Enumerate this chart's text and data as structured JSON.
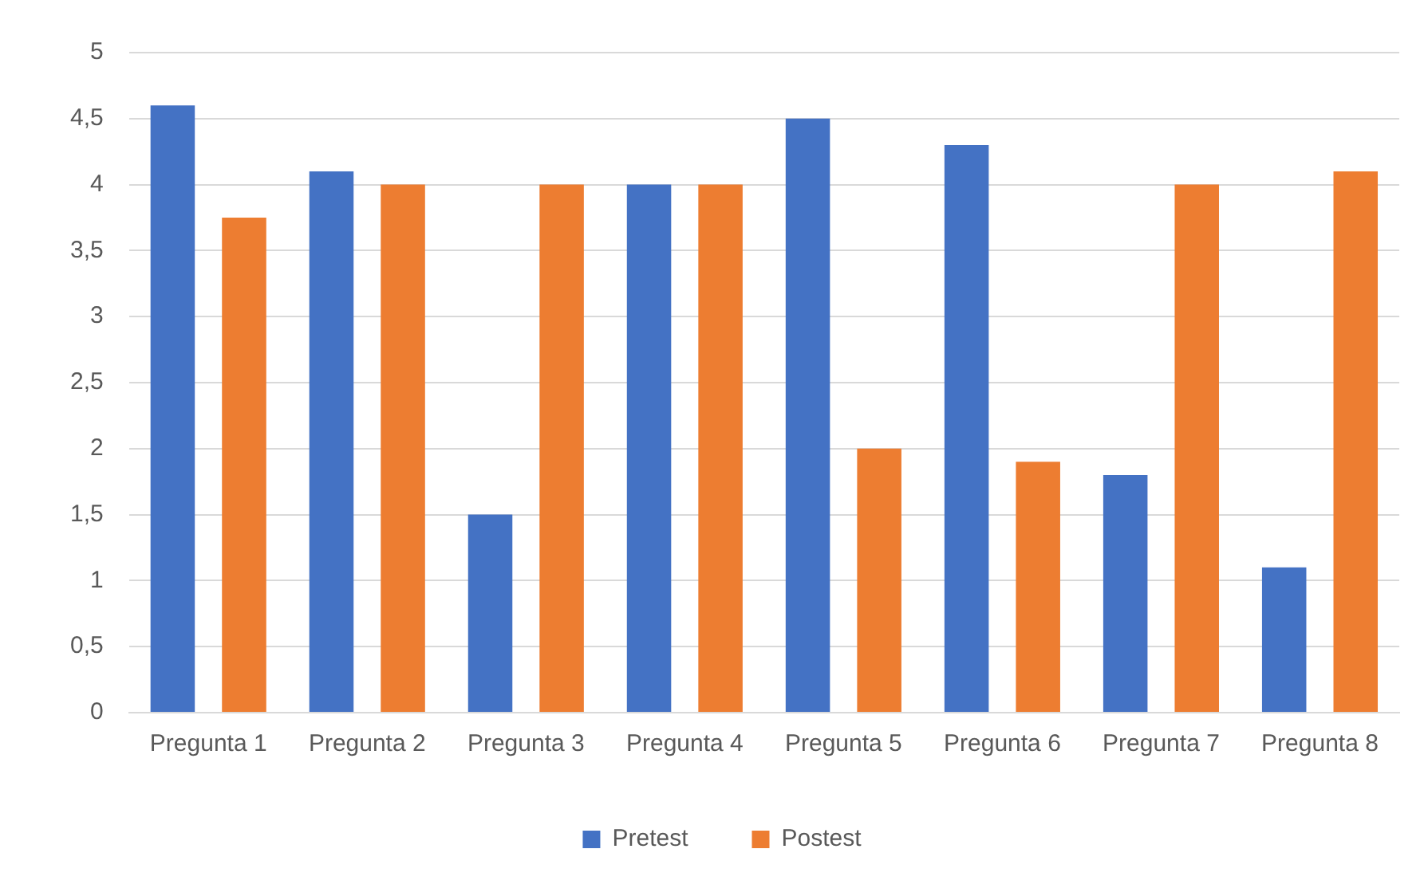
{
  "chart_data": {
    "type": "bar",
    "categories": [
      "Pregunta 1",
      "Pregunta 2",
      "Pregunta 3",
      "Pregunta 4",
      "Pregunta 5",
      "Pregunta 6",
      "Pregunta 7",
      "Pregunta 8"
    ],
    "series": [
      {
        "name": "Pretest",
        "color": "#4472c4",
        "values": [
          4.6,
          4.1,
          1.5,
          4,
          4.5,
          4.3,
          1.8,
          1.1
        ]
      },
      {
        "name": "Postest",
        "color": "#ed7d31",
        "values": [
          3.75,
          4,
          4,
          4,
          2,
          1.9,
          4,
          4.1
        ]
      }
    ],
    "ylim": [
      0,
      5
    ],
    "yticks": [
      0,
      {
        "value": 0.5,
        "label": "0,5"
      },
      1,
      {
        "value": 1.5,
        "label": "1,5"
      },
      2,
      {
        "value": 2.5,
        "label": "2,5"
      },
      3,
      {
        "value": 3.5,
        "label": "3,5"
      },
      4,
      {
        "value": 4.5,
        "label": "4,5"
      },
      5
    ],
    "grid": "y",
    "legend": "bottom"
  }
}
